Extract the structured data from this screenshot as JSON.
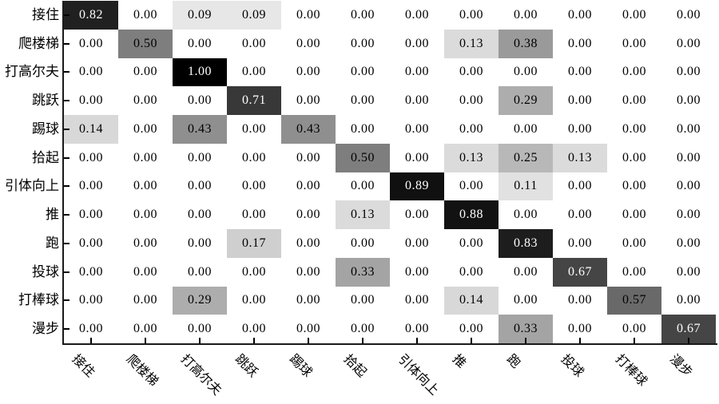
{
  "chart_data": {
    "type": "heatmap",
    "subtype": "confusion-matrix",
    "title": "",
    "xlabel": "",
    "ylabel": "",
    "categories": [
      "接住",
      "爬楼梯",
      "打高尔夫",
      "跳跃",
      "踢球",
      "拾起",
      "引体向上",
      "推",
      "跑",
      "投球",
      "打棒球",
      "漫步"
    ],
    "row_labels": [
      "接住",
      "爬楼梯",
      "打高尔夫",
      "跳跃",
      "踢球",
      "拾起",
      "引体向上",
      "推",
      "跑",
      "投球",
      "打棒球",
      "漫步"
    ],
    "col_labels": [
      "接住",
      "爬楼梯",
      "打高尔夫",
      "跳跃",
      "踢球",
      "拾起",
      "引体向上",
      "推",
      "跑",
      "投球",
      "打棒球",
      "漫步"
    ],
    "matrix": [
      [
        0.82,
        0.0,
        0.09,
        0.09,
        0.0,
        0.0,
        0.0,
        0.0,
        0.0,
        0.0,
        0.0,
        0.0
      ],
      [
        0.0,
        0.5,
        0.0,
        0.0,
        0.0,
        0.0,
        0.0,
        0.13,
        0.38,
        0.0,
        0.0,
        0.0
      ],
      [
        0.0,
        0.0,
        1.0,
        0.0,
        0.0,
        0.0,
        0.0,
        0.0,
        0.0,
        0.0,
        0.0,
        0.0
      ],
      [
        0.0,
        0.0,
        0.0,
        0.71,
        0.0,
        0.0,
        0.0,
        0.0,
        0.29,
        0.0,
        0.0,
        0.0
      ],
      [
        0.14,
        0.0,
        0.43,
        0.0,
        0.43,
        0.0,
        0.0,
        0.0,
        0.0,
        0.0,
        0.0,
        0.0
      ],
      [
        0.0,
        0.0,
        0.0,
        0.0,
        0.0,
        0.5,
        0.0,
        0.13,
        0.25,
        0.13,
        0.0,
        0.0
      ],
      [
        0.0,
        0.0,
        0.0,
        0.0,
        0.0,
        0.0,
        0.89,
        0.0,
        0.11,
        0.0,
        0.0,
        0.0
      ],
      [
        0.0,
        0.0,
        0.0,
        0.0,
        0.0,
        0.13,
        0.0,
        0.88,
        0.0,
        0.0,
        0.0,
        0.0
      ],
      [
        0.0,
        0.0,
        0.0,
        0.17,
        0.0,
        0.0,
        0.0,
        0.0,
        0.83,
        0.0,
        0.0,
        0.0
      ],
      [
        0.0,
        0.0,
        0.0,
        0.0,
        0.0,
        0.33,
        0.0,
        0.0,
        0.0,
        0.67,
        0.0,
        0.0
      ],
      [
        0.0,
        0.0,
        0.29,
        0.0,
        0.0,
        0.0,
        0.0,
        0.14,
        0.0,
        0.0,
        0.57,
        0.0
      ],
      [
        0.0,
        0.0,
        0.0,
        0.0,
        0.0,
        0.0,
        0.0,
        0.0,
        0.33,
        0.0,
        0.0,
        0.67
      ]
    ],
    "value_decimals": 2,
    "colormap": "grayscale",
    "color_low": "#ffffff",
    "color_high": "#000000",
    "cell_text_dark": "#000000",
    "cell_text_light": "#ffffff",
    "white_text_threshold": 0.6,
    "value_range": [
      0,
      1
    ],
    "grid": false,
    "legend": "none",
    "x_tick_rotation_deg": 45,
    "spines": [
      "left",
      "bottom"
    ],
    "tick_direction": "in"
  }
}
